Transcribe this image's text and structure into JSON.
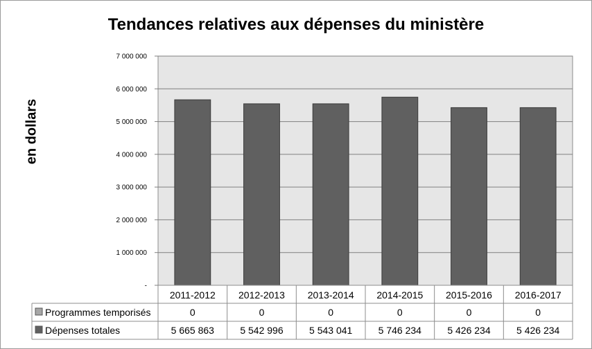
{
  "chart_data": {
    "type": "bar",
    "title": "Tendances relatives aux dépenses du ministère",
    "ylabel": "en dollars",
    "xlabel": "",
    "ylim": [
      0,
      7000000
    ],
    "ytick_labels": [
      "-",
      "1 000 000",
      "2 000 000",
      "3 000 000",
      "4 000 000",
      "5 000 000",
      "6 000 000",
      "7 000 000"
    ],
    "grid": true,
    "categories": [
      "2011-2012",
      "2012-2013",
      "2013-2014",
      "2014-2015",
      "2015-2016",
      "2016-2017"
    ],
    "series": [
      {
        "name": "Programmes temporisés",
        "values": [
          0,
          0,
          0,
          0,
          0,
          0
        ],
        "labels": [
          "0",
          "0",
          "0",
          "0",
          "0",
          "0"
        ],
        "color": "#a6a6a6"
      },
      {
        "name": "Dépenses totales",
        "values": [
          5665863,
          5542996,
          5543041,
          5746234,
          5426234,
          5426234
        ],
        "labels": [
          "5 665 863",
          "5 542 996",
          "5 543 041",
          "5 746 234",
          "5 426 234",
          "5 426 234"
        ],
        "color": "#606060"
      }
    ],
    "legend_placement": "data-table-left",
    "plot_background": "#e6e6e6"
  }
}
